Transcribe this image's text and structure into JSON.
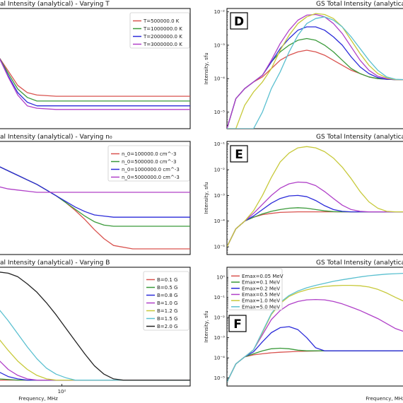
{
  "panels": [
    {
      "id": "A",
      "title": "al Intensity (analytical) - Varying T",
      "xlabel": "",
      "ylabel": "",
      "letter": "",
      "legend": [
        "T=500000.0 K",
        "T=1000000.0 K",
        "T=2000000.0 K",
        "T=3000000.0 K"
      ],
      "yticks": [],
      "xticks": []
    },
    {
      "id": "D",
      "title": "GS Total Intensity (analytical",
      "xlabel": "",
      "ylabel": "Intensity, sfu",
      "letter": "D",
      "legend": [],
      "yticks": [
        "10⁻²",
        "10⁻³",
        "10⁻⁴",
        "10⁻⁵"
      ],
      "xticks": []
    },
    {
      "id": "B",
      "title": "al Intensity (analytical) - Varying n₀",
      "xlabel": "",
      "ylabel": "",
      "letter": "",
      "legend": [
        "n_0=100000.0 cm^-3",
        "n_0=500000.0 cm^-3",
        "n_0=1000000.0 cm^-3",
        "n_0=5000000.0 cm^-3"
      ],
      "yticks": [],
      "xticks": []
    },
    {
      "id": "E",
      "title": "GS Total Intensity (analytical)",
      "xlabel": "",
      "ylabel": "Intensity, sfu",
      "letter": "E",
      "legend": [],
      "yticks": [
        "10⁻¹",
        "10⁻²",
        "10⁻³",
        "10⁻⁴",
        "10⁻⁵"
      ],
      "xticks": []
    },
    {
      "id": "C",
      "title": "al Intensity (analytical) - Varying B",
      "xlabel": "Frequency, MHz",
      "ylabel": "",
      "letter": "",
      "legend": [
        "B=0.1 G",
        "B=0.5 G",
        "B=0.8 G",
        "B=1.0 G",
        "B=1.2 G",
        "B=1.5 G",
        "B=2.0 G"
      ],
      "yticks": [],
      "xticks": [
        "10²"
      ]
    },
    {
      "id": "F",
      "title": "GS Total Intensity (analytical)",
      "xlabel": "Frequency, MHz",
      "ylabel": "Intensity, sfu",
      "letter": "F",
      "legend": [
        "Emax=0.05 MeV",
        "Emax=0.1 MeV",
        "Emax=0.2 MeV",
        "Emax=0.5 MeV",
        "Emax=1.0 MeV",
        "Emax=5.0 MeV"
      ],
      "yticks": [
        "10⁰",
        "10⁻¹",
        "10⁻²",
        "10⁻³",
        "10⁻⁴",
        "10⁻⁵"
      ],
      "xticks": []
    }
  ],
  "colors": {
    "A": [
      "#d9534f",
      "#3a9a3a",
      "#2b2bd9",
      "#b040c8"
    ],
    "B": [
      "#d9534f",
      "#3a9a3a",
      "#2b2bd9",
      "#b040c8"
    ],
    "C": [
      "#d9534f",
      "#3a9a3a",
      "#2b2bd9",
      "#b040c8",
      "#c7c93a",
      "#5bc0d0",
      "#222222"
    ],
    "D": [
      "#d9534f",
      "#3a9a3a",
      "#2b2bd9",
      "#b040c8",
      "#c7c93a",
      "#5bc0d0"
    ],
    "E": [
      "#d9534f",
      "#3a9a3a",
      "#2b2bd9",
      "#b040c8",
      "#c7c93a"
    ],
    "F": [
      "#d9534f",
      "#3a9a3a",
      "#2b2bd9",
      "#b040c8",
      "#c7c93a",
      "#5bc0d0"
    ]
  },
  "chart_data": [
    {
      "panel": "A",
      "type": "line",
      "title": "al Intensity (analytical) - Varying T",
      "x": [
        0,
        0.05,
        0.1,
        0.15,
        0.2,
        0.3,
        0.5,
        0.7,
        1.0
      ],
      "series": [
        {
          "name": "T=500000.0 K",
          "values": [
            0.6,
            0.48,
            0.36,
            0.3,
            0.28,
            0.27,
            0.27,
            0.27,
            0.27
          ]
        },
        {
          "name": "T=1000000.0 K",
          "values": [
            0.6,
            0.46,
            0.33,
            0.26,
            0.23,
            0.23,
            0.23,
            0.23,
            0.23
          ]
        },
        {
          "name": "T=2000000.0 K",
          "values": [
            0.6,
            0.44,
            0.3,
            0.22,
            0.19,
            0.19,
            0.19,
            0.19,
            0.19
          ]
        },
        {
          "name": "T=3000000.0 K",
          "values": [
            0.6,
            0.43,
            0.28,
            0.19,
            0.17,
            0.16,
            0.16,
            0.16,
            0.16
          ]
        }
      ]
    },
    {
      "panel": "D",
      "type": "line",
      "ylog": true,
      "ylim": [
        -5.5,
        -1.9
      ],
      "title": "GS Total Intensity (analytical",
      "x": [
        0,
        0.05,
        0.1,
        0.15,
        0.2,
        0.25,
        0.3,
        0.35,
        0.4,
        0.45,
        0.5,
        0.55,
        0.6,
        0.65,
        0.7,
        0.75,
        0.8,
        0.85,
        0.9,
        0.95,
        1.0
      ],
      "series": [
        {
          "values": [
            -5.5,
            -4.6,
            -4.3,
            -4.1,
            -3.95,
            -3.7,
            -3.45,
            -3.3,
            -3.2,
            -3.15,
            -3.2,
            -3.3,
            -3.45,
            -3.6,
            -3.75,
            -3.85,
            -3.95,
            -4.0,
            -4.02,
            -4.03,
            -4.03
          ]
        },
        {
          "values": [
            -5.5,
            -4.6,
            -4.3,
            -4.1,
            -3.9,
            -3.5,
            -3.2,
            -3.0,
            -2.85,
            -2.8,
            -2.85,
            -3.0,
            -3.2,
            -3.45,
            -3.7,
            -3.85,
            -3.95,
            -4.0,
            -4.02,
            -4.03,
            -4.03
          ]
        },
        {
          "values": [
            -5.5,
            -4.6,
            -4.3,
            -4.1,
            -3.9,
            -3.5,
            -3.1,
            -2.8,
            -2.55,
            -2.45,
            -2.45,
            -2.55,
            -2.75,
            -3.0,
            -3.35,
            -3.65,
            -3.85,
            -3.97,
            -4.02,
            -4.03,
            -4.03
          ]
        },
        {
          "values": [
            -5.5,
            -4.6,
            -4.3,
            -4.1,
            -3.9,
            -3.45,
            -2.95,
            -2.55,
            -2.25,
            -2.1,
            -2.08,
            -2.15,
            -2.35,
            -2.65,
            -3.05,
            -3.45,
            -3.75,
            -3.93,
            -4.0,
            -4.03,
            -4.03
          ]
        },
        {
          "values": [
            -5.5,
            -5.5,
            -4.8,
            -4.4,
            -4.1,
            -3.7,
            -3.15,
            -2.7,
            -2.35,
            -2.15,
            -2.05,
            -2.08,
            -2.2,
            -2.45,
            -2.85,
            -3.25,
            -3.6,
            -3.85,
            -3.98,
            -4.03,
            -4.03
          ]
        },
        {
          "values": [
            -5.5,
            -5.5,
            -5.5,
            -5.5,
            -5.0,
            -4.3,
            -3.8,
            -3.2,
            -2.7,
            -2.35,
            -2.2,
            -2.15,
            -2.25,
            -2.45,
            -2.75,
            -3.1,
            -3.45,
            -3.75,
            -3.95,
            -4.02,
            -4.03
          ]
        }
      ]
    },
    {
      "panel": "B",
      "type": "line",
      "title": "al Intensity (analytical) - Varying n₀",
      "x": [
        0,
        0.05,
        0.1,
        0.15,
        0.2,
        0.25,
        0.3,
        0.35,
        0.4,
        0.45,
        0.5,
        0.55,
        0.6,
        0.7,
        0.8,
        1.0
      ],
      "series": [
        {
          "name": "n_0=100000.0 cm^-3",
          "values": [
            0.78,
            0.74,
            0.7,
            0.66,
            0.62,
            0.57,
            0.52,
            0.46,
            0.39,
            0.31,
            0.22,
            0.14,
            0.08,
            0.05,
            0.05,
            0.05
          ]
        },
        {
          "name": "n_0=500000.0 cm^-3",
          "values": [
            0.78,
            0.74,
            0.7,
            0.66,
            0.62,
            0.57,
            0.52,
            0.46,
            0.4,
            0.34,
            0.29,
            0.26,
            0.25,
            0.25,
            0.25,
            0.25
          ]
        },
        {
          "name": "n_0=1000000.0 cm^-3",
          "values": [
            0.78,
            0.74,
            0.7,
            0.66,
            0.62,
            0.57,
            0.52,
            0.47,
            0.42,
            0.38,
            0.35,
            0.34,
            0.33,
            0.33,
            0.33,
            0.33
          ]
        },
        {
          "name": "n_0=5000000.0 cm^-3",
          "values": [
            0.6,
            0.58,
            0.57,
            0.56,
            0.55,
            0.55,
            0.55,
            0.55,
            0.55,
            0.55,
            0.55,
            0.55,
            0.55,
            0.55,
            0.55,
            0.55
          ]
        }
      ]
    },
    {
      "panel": "E",
      "type": "line",
      "ylog": true,
      "ylim": [
        -5.3,
        -0.9
      ],
      "title": "GS Total Intensity (analytical)",
      "x": [
        0,
        0.05,
        0.1,
        0.15,
        0.2,
        0.25,
        0.3,
        0.35,
        0.4,
        0.45,
        0.5,
        0.55,
        0.6,
        0.65,
        0.7,
        0.75,
        0.8,
        0.85,
        0.9,
        0.95,
        1.0
      ],
      "series": [
        {
          "values": [
            -5.0,
            -4.3,
            -4.0,
            -3.85,
            -3.75,
            -3.7,
            -3.66,
            -3.65,
            -3.64,
            -3.64,
            -3.64,
            -3.64,
            -3.64,
            -3.64,
            -3.64,
            -3.64,
            -3.64,
            -3.64,
            -3.64,
            -3.64,
            -3.64
          ]
        },
        {
          "values": [
            -5.0,
            -4.3,
            -4.0,
            -3.85,
            -3.72,
            -3.62,
            -3.55,
            -3.5,
            -3.48,
            -3.5,
            -3.55,
            -3.6,
            -3.63,
            -3.64,
            -3.64,
            -3.64,
            -3.64,
            -3.64,
            -3.64,
            -3.64,
            -3.64
          ]
        },
        {
          "values": [
            -5.0,
            -4.3,
            -4.0,
            -3.8,
            -3.55,
            -3.3,
            -3.12,
            -3.02,
            -3.0,
            -3.05,
            -3.2,
            -3.4,
            -3.55,
            -3.62,
            -3.64,
            -3.64,
            -3.64,
            -3.64,
            -3.64,
            -3.64,
            -3.64
          ]
        },
        {
          "values": [
            -5.0,
            -4.3,
            -4.0,
            -3.7,
            -3.35,
            -3.0,
            -2.72,
            -2.55,
            -2.48,
            -2.5,
            -2.62,
            -2.85,
            -3.12,
            -3.38,
            -3.55,
            -3.62,
            -3.64,
            -3.64,
            -3.64,
            -3.64,
            -3.64
          ]
        },
        {
          "values": [
            -5.0,
            -4.3,
            -4.0,
            -3.6,
            -3.0,
            -2.3,
            -1.7,
            -1.35,
            -1.15,
            -1.1,
            -1.15,
            -1.3,
            -1.55,
            -1.9,
            -2.35,
            -2.85,
            -3.25,
            -3.5,
            -3.62,
            -3.64,
            -3.64
          ]
        }
      ]
    },
    {
      "panel": "C",
      "type": "line",
      "title": "al Intensity (analytical) - Varying B",
      "x": [
        0,
        0.05,
        0.1,
        0.15,
        0.2,
        0.25,
        0.3,
        0.35,
        0.4,
        0.45,
        0.5,
        0.55,
        0.6,
        0.65,
        0.7,
        0.8,
        1.0
      ],
      "series": [
        {
          "name": "B=0.1 G",
          "values": [
            0.05,
            0.05,
            0.05,
            0.05,
            0.05,
            0.05,
            0.05,
            0.05,
            0.05,
            0.05,
            0.05,
            0.05,
            0.05,
            0.05,
            0.05,
            0.05,
            0.05
          ]
        },
        {
          "name": "B=0.5 G",
          "values": [
            0.06,
            0.055,
            0.05,
            0.05,
            0.05,
            0.05,
            0.05,
            0.05,
            0.05,
            0.05,
            0.05,
            0.05,
            0.05,
            0.05,
            0.05,
            0.05,
            0.05
          ]
        },
        {
          "name": "B=0.8 G",
          "values": [
            0.12,
            0.08,
            0.06,
            0.05,
            0.05,
            0.05,
            0.05,
            0.05,
            0.05,
            0.05,
            0.05,
            0.05,
            0.05,
            0.05,
            0.05,
            0.05,
            0.05
          ]
        },
        {
          "name": "B=1.0 G",
          "values": [
            0.22,
            0.14,
            0.09,
            0.06,
            0.05,
            0.05,
            0.05,
            0.05,
            0.05,
            0.05,
            0.05,
            0.05,
            0.05,
            0.05,
            0.05,
            0.05,
            0.05
          ]
        },
        {
          "name": "B=1.2 G",
          "values": [
            0.4,
            0.3,
            0.21,
            0.14,
            0.09,
            0.06,
            0.05,
            0.05,
            0.05,
            0.05,
            0.05,
            0.05,
            0.05,
            0.05,
            0.05,
            0.05,
            0.05
          ]
        },
        {
          "name": "B=1.5 G",
          "values": [
            0.65,
            0.55,
            0.44,
            0.33,
            0.23,
            0.15,
            0.1,
            0.07,
            0.05,
            0.05,
            0.05,
            0.05,
            0.05,
            0.05,
            0.05,
            0.05,
            0.05
          ]
        },
        {
          "name": "B=2.0 G",
          "values": [
            0.96,
            0.95,
            0.92,
            0.86,
            0.79,
            0.7,
            0.6,
            0.49,
            0.38,
            0.27,
            0.17,
            0.1,
            0.06,
            0.05,
            0.05,
            0.05,
            0.05
          ]
        }
      ],
      "xtick_positions": [
        0.33
      ]
    },
    {
      "panel": "F",
      "type": "line",
      "ylog": true,
      "ylim": [
        -5.4,
        0.5
      ],
      "title": "GS Total Intensity (analytical)",
      "x": [
        0,
        0.05,
        0.1,
        0.15,
        0.2,
        0.25,
        0.3,
        0.35,
        0.4,
        0.45,
        0.5,
        0.55,
        0.6,
        0.65,
        0.7,
        0.75,
        0.8,
        0.85,
        0.9,
        0.95,
        1.0
      ],
      "series": [
        {
          "name": "Emax=0.05 MeV",
          "values": [
            -5.2,
            -4.3,
            -3.95,
            -3.85,
            -3.8,
            -3.75,
            -3.72,
            -3.7,
            -3.68,
            -3.67,
            -3.66,
            -3.65,
            -3.65,
            -3.65,
            -3.65,
            -3.65,
            -3.65,
            -3.65,
            -3.65,
            -3.65,
            -3.65
          ]
        },
        {
          "name": "Emax=0.1 MeV",
          "values": [
            -5.2,
            -4.3,
            -3.95,
            -3.8,
            -3.65,
            -3.55,
            -3.52,
            -3.55,
            -3.62,
            -3.65,
            -3.65,
            -3.65,
            -3.65,
            -3.65,
            -3.65,
            -3.65,
            -3.65,
            -3.65,
            -3.65,
            -3.65,
            -3.65
          ]
        },
        {
          "name": "Emax=0.2 MeV",
          "values": [
            -5.2,
            -4.3,
            -3.95,
            -3.7,
            -3.2,
            -2.75,
            -2.5,
            -2.45,
            -2.6,
            -3.0,
            -3.5,
            -3.65,
            -3.65,
            -3.65,
            -3.65,
            -3.65,
            -3.65,
            -3.65,
            -3.65,
            -3.65,
            -3.65
          ]
        },
        {
          "name": "Emax=0.5 MeV",
          "values": [
            -5.2,
            -4.3,
            -3.95,
            -3.6,
            -2.85,
            -2.1,
            -1.65,
            -1.35,
            -1.2,
            -1.12,
            -1.1,
            -1.12,
            -1.2,
            -1.32,
            -1.48,
            -1.65,
            -1.85,
            -2.05,
            -2.3,
            -2.55,
            -2.7
          ]
        },
        {
          "name": "Emax=1.0 MeV",
          "values": [
            -5.2,
            -4.3,
            -3.95,
            -3.6,
            -2.75,
            -1.85,
            -1.3,
            -0.95,
            -0.75,
            -0.62,
            -0.52,
            -0.45,
            -0.42,
            -0.4,
            -0.4,
            -0.42,
            -0.48,
            -0.6,
            -0.78,
            -1.0,
            -1.2
          ]
        },
        {
          "name": "Emax=5.0 MeV",
          "values": [
            -5.2,
            -4.3,
            -3.95,
            -3.6,
            -2.7,
            -1.8,
            -1.25,
            -0.9,
            -0.68,
            -0.52,
            -0.4,
            -0.3,
            -0.2,
            -0.12,
            -0.05,
            0.02,
            0.08,
            0.12,
            0.16,
            0.18,
            0.2
          ]
        }
      ]
    }
  ]
}
